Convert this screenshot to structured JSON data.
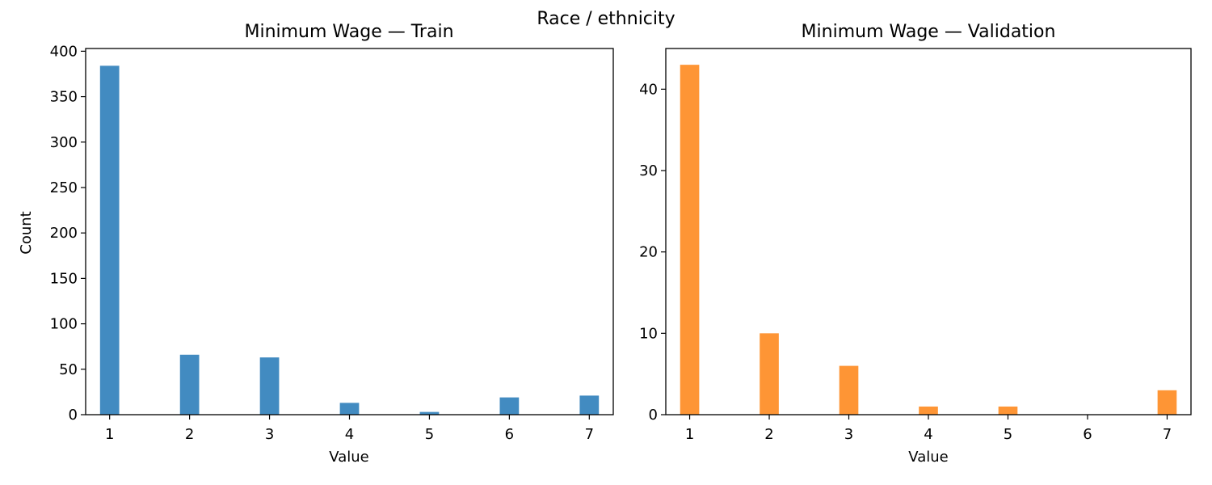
{
  "suptitle": "Race / ethnicity",
  "chart_data": [
    {
      "type": "bar",
      "title": "Minimum Wage — Train",
      "xlabel": "Value",
      "ylabel": "Count",
      "categories": [
        1,
        2,
        3,
        4,
        5,
        6,
        7
      ],
      "values": [
        384,
        66,
        63,
        13,
        3,
        19,
        21
      ],
      "xlim": [
        0.7,
        7.3
      ],
      "ylim": [
        0,
        403
      ],
      "xticks": [
        1,
        2,
        3,
        4,
        5,
        6,
        7
      ],
      "yticks": [
        0,
        50,
        100,
        150,
        200,
        250,
        300,
        350,
        400
      ],
      "color": "#428bc1",
      "grid": false
    },
    {
      "type": "bar",
      "title": "Minimum Wage — Validation",
      "xlabel": "Value",
      "ylabel": "",
      "categories": [
        1,
        2,
        3,
        4,
        5,
        6,
        7
      ],
      "values": [
        43,
        10,
        6,
        1,
        1,
        0,
        3
      ],
      "xlim": [
        0.7,
        7.3
      ],
      "ylim": [
        0,
        45
      ],
      "xticks": [
        1,
        2,
        3,
        4,
        5,
        6,
        7
      ],
      "yticks": [
        0,
        10,
        20,
        30,
        40
      ],
      "color": "#fe9535",
      "grid": false
    }
  ]
}
